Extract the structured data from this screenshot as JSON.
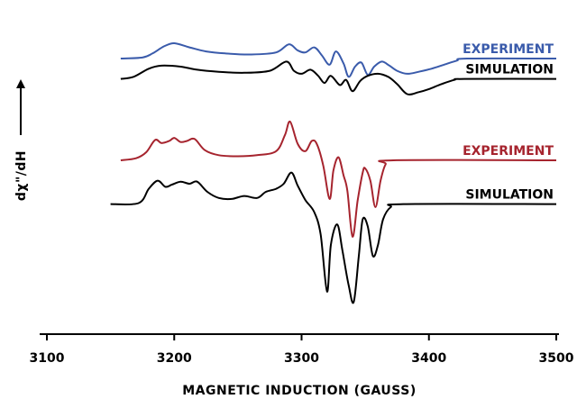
{
  "chart_data": {
    "type": "line",
    "xlabel": "MAGNETIC INDUCTION (GAUSS)",
    "ylabel": "dχ\"/dH",
    "xlim": [
      3100,
      3500
    ],
    "x_ticks": [
      "3100",
      "3200",
      "3300",
      "3400",
      "3500"
    ],
    "y_ticks_shown": false,
    "grid": false,
    "series": [
      {
        "name": "EXPERIMENT",
        "color": "#3a5bab",
        "offset": 10.0,
        "points": [
          [
            3158,
            0
          ],
          [
            3175,
            0.1
          ],
          [
            3183,
            0.5
          ],
          [
            3192,
            1.2
          ],
          [
            3200,
            1.5
          ],
          [
            3212,
            1.1
          ],
          [
            3225,
            0.7
          ],
          [
            3240,
            0.5
          ],
          [
            3260,
            0.4
          ],
          [
            3280,
            0.6
          ],
          [
            3290,
            1.4
          ],
          [
            3297,
            0.8
          ],
          [
            3303,
            0.6
          ],
          [
            3310,
            1.1
          ],
          [
            3316,
            0.3
          ],
          [
            3322,
            -0.6
          ],
          [
            3327,
            0.7
          ],
          [
            3333,
            -0.5
          ],
          [
            3337,
            -1.8
          ],
          [
            3342,
            -0.8
          ],
          [
            3347,
            -0.4
          ],
          [
            3352,
            -1.6
          ],
          [
            3357,
            -0.8
          ],
          [
            3363,
            -0.3
          ],
          [
            3369,
            -0.7
          ],
          [
            3375,
            -1.2
          ],
          [
            3383,
            -1.5
          ],
          [
            3392,
            -1.3
          ],
          [
            3402,
            -1.0
          ],
          [
            3412,
            -0.6
          ],
          [
            3422,
            -0.2
          ],
          [
            3430,
            0.0
          ],
          [
            3500,
            0.0
          ]
        ]
      },
      {
        "name": "SIMULATION",
        "color": "#000000",
        "offset": 8.0,
        "points": [
          [
            3158,
            0
          ],
          [
            3168,
            0.2
          ],
          [
            3180,
            1.0
          ],
          [
            3190,
            1.3
          ],
          [
            3205,
            1.2
          ],
          [
            3218,
            0.9
          ],
          [
            3235,
            0.7
          ],
          [
            3255,
            0.6
          ],
          [
            3275,
            0.8
          ],
          [
            3288,
            1.7
          ],
          [
            3294,
            0.8
          ],
          [
            3300,
            0.5
          ],
          [
            3307,
            0.9
          ],
          [
            3313,
            0.3
          ],
          [
            3318,
            -0.4
          ],
          [
            3323,
            0.3
          ],
          [
            3330,
            -0.6
          ],
          [
            3335,
            -0.1
          ],
          [
            3340,
            -1.2
          ],
          [
            3346,
            -0.2
          ],
          [
            3352,
            0.3
          ],
          [
            3360,
            0.5
          ],
          [
            3368,
            0.2
          ],
          [
            3375,
            -0.5
          ],
          [
            3383,
            -1.5
          ],
          [
            3392,
            -1.3
          ],
          [
            3400,
            -1.0
          ],
          [
            3410,
            -0.5
          ],
          [
            3420,
            -0.1
          ],
          [
            3428,
            0.0
          ],
          [
            3500,
            0.0
          ]
        ]
      },
      {
        "name": "EXPERIMENT",
        "color": "#a6242e",
        "offset": 0.0,
        "points": [
          [
            3158,
            0
          ],
          [
            3170,
            0.2
          ],
          [
            3178,
            0.8
          ],
          [
            3185,
            2.0
          ],
          [
            3190,
            1.7
          ],
          [
            3196,
            1.9
          ],
          [
            3200,
            2.2
          ],
          [
            3205,
            1.8
          ],
          [
            3210,
            1.9
          ],
          [
            3216,
            2.1
          ],
          [
            3224,
            1.0
          ],
          [
            3235,
            0.5
          ],
          [
            3250,
            0.4
          ],
          [
            3265,
            0.5
          ],
          [
            3280,
            0.9
          ],
          [
            3287,
            2.5
          ],
          [
            3291,
            3.8
          ],
          [
            3297,
            1.6
          ],
          [
            3303,
            0.9
          ],
          [
            3308,
            1.9
          ],
          [
            3312,
            1.6
          ],
          [
            3317,
            -0.5
          ],
          [
            3322,
            -3.8
          ],
          [
            3325,
            -1.0
          ],
          [
            3329,
            0.3
          ],
          [
            3333,
            -1.5
          ],
          [
            3336,
            -3.0
          ],
          [
            3340,
            -7.5
          ],
          [
            3344,
            -4.0
          ],
          [
            3348,
            -1.2
          ],
          [
            3350,
            -0.8
          ],
          [
            3354,
            -2.0
          ],
          [
            3358,
            -4.6
          ],
          [
            3362,
            -2.0
          ],
          [
            3366,
            -0.4
          ],
          [
            3372,
            0.0
          ],
          [
            3500,
            0.0
          ]
        ]
      },
      {
        "name": "SIMULATION",
        "color": "#000000",
        "offset": -4.3,
        "points": [
          [
            3150,
            0
          ],
          [
            3172,
            0.1
          ],
          [
            3180,
            1.5
          ],
          [
            3187,
            2.3
          ],
          [
            3193,
            1.7
          ],
          [
            3198,
            1.9
          ],
          [
            3205,
            2.2
          ],
          [
            3212,
            2.0
          ],
          [
            3218,
            2.2
          ],
          [
            3226,
            1.2
          ],
          [
            3235,
            0.6
          ],
          [
            3245,
            0.5
          ],
          [
            3255,
            0.8
          ],
          [
            3265,
            0.6
          ],
          [
            3272,
            1.2
          ],
          [
            3280,
            1.5
          ],
          [
            3286,
            2.0
          ],
          [
            3292,
            3.1
          ],
          [
            3297,
            1.8
          ],
          [
            3303,
            0.4
          ],
          [
            3310,
            -0.8
          ],
          [
            3315,
            -3.0
          ],
          [
            3320,
            -8.6
          ],
          [
            3323,
            -4.0
          ],
          [
            3328,
            -2.0
          ],
          [
            3332,
            -4.5
          ],
          [
            3337,
            -8.0
          ],
          [
            3341,
            -9.6
          ],
          [
            3345,
            -5.0
          ],
          [
            3348,
            -1.5
          ],
          [
            3352,
            -2.2
          ],
          [
            3356,
            -5.1
          ],
          [
            3360,
            -4.0
          ],
          [
            3364,
            -1.5
          ],
          [
            3370,
            -0.3
          ],
          [
            3380,
            0.0
          ],
          [
            3500,
            0.0
          ]
        ]
      }
    ],
    "annotations": []
  }
}
